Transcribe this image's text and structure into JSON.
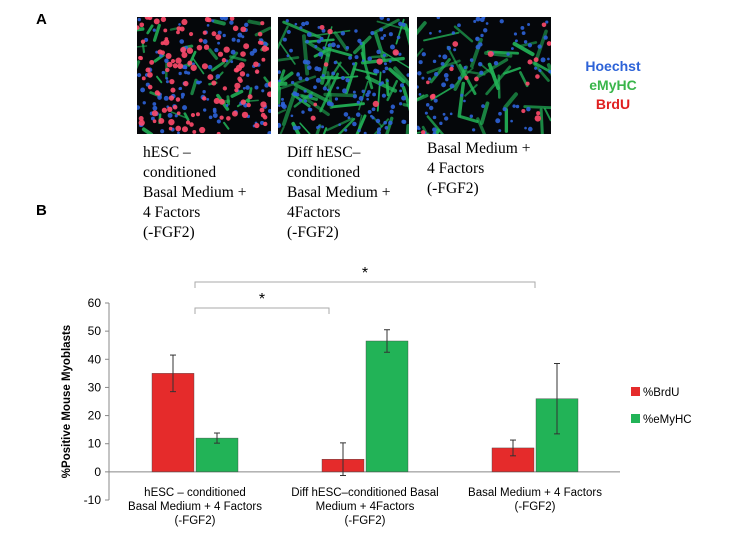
{
  "figure": {
    "panel_a": "A",
    "panel_b": "B",
    "stain_legend": {
      "hoechst": "Hoechst",
      "emyhc": "eMyHC",
      "brdu": "BrdU"
    },
    "image_captions": [
      "hESC –\nconditioned\nBasal Medium +\n4 Factors\n(-FGF2)",
      "Diff hESC–\nconditioned\nBasal Medium +\n4Factors\n(-FGF2)",
      "Basal Medium +\n4 Factors\n(-FGF2)"
    ],
    "significance_marks": [
      "*",
      "*"
    ]
  },
  "colors": {
    "brdu": "#e52b2b",
    "emyhc": "#22b357",
    "hoechst": "#2d63d8"
  },
  "chart_data": {
    "type": "bar",
    "categories": [
      "hESC – conditioned\nBasal Medium + 4 Factors\n(-FGF2)",
      "Diff hESC–conditioned Basal\nMedium + 4Factors\n(-FGF2)",
      "Basal Medium + 4 Factors\n(-FGF2)"
    ],
    "series": [
      {
        "name": "%BrdU",
        "values": [
          35,
          4.5,
          8.5
        ],
        "errors": [
          6.5,
          5.8,
          2.8
        ],
        "color": "#e52b2b"
      },
      {
        "name": "%eMyHC",
        "values": [
          12,
          46.5,
          26
        ],
        "errors": [
          1.8,
          4,
          12.5
        ],
        "color": "#22b357"
      }
    ],
    "ylabel": "%Positive Mouse Myoblasts",
    "ylim": [
      -10,
      60
    ],
    "yticks": [
      "-10",
      "0",
      "10",
      "20",
      "30",
      "40",
      "50",
      "60"
    ],
    "legend_position": "right",
    "grid": false,
    "significance": [
      {
        "from_category": 0,
        "to_category": 1,
        "label": "*"
      },
      {
        "from_category": 0,
        "to_category": 2,
        "label": "*"
      }
    ]
  }
}
